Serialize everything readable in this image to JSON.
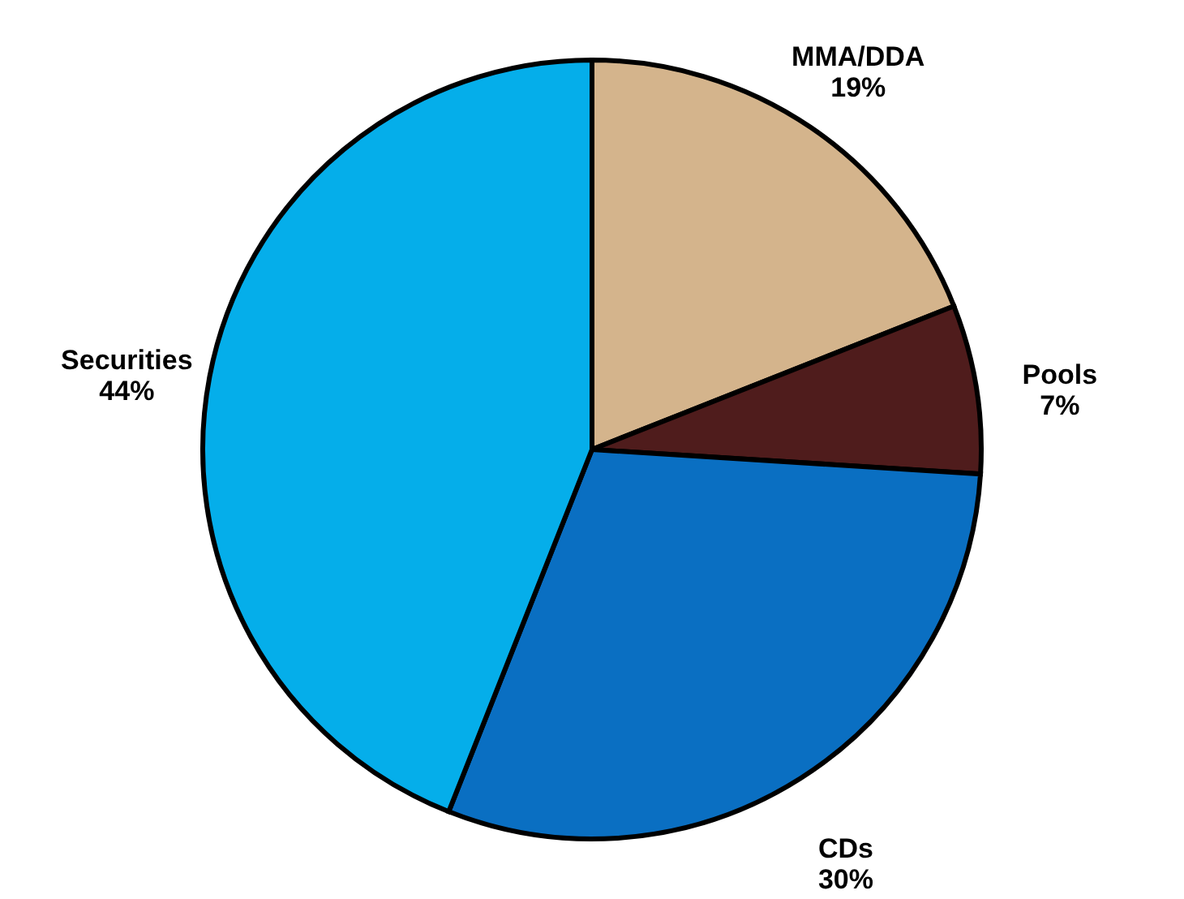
{
  "chart_data": {
    "type": "pie",
    "categories": [
      "MMA/DDA",
      "Pools",
      "CDs",
      "Securities"
    ],
    "values": [
      19,
      7,
      30,
      44
    ],
    "value_labels": [
      "19%",
      "7%",
      "30%",
      "44%"
    ],
    "colors": [
      "#d4b48c",
      "#4f1c1c",
      "#0a6fc2",
      "#05aeea"
    ]
  }
}
